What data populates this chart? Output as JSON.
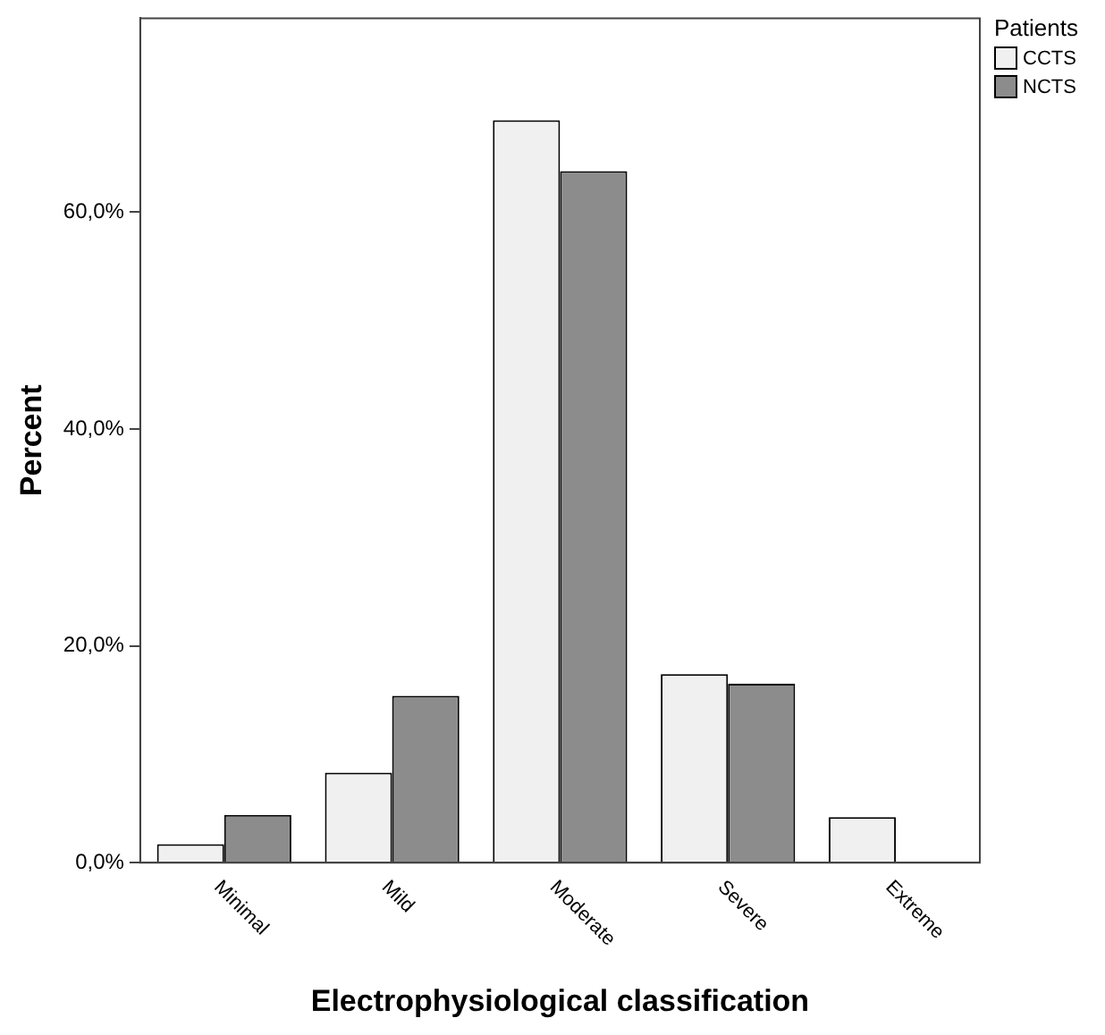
{
  "chart_data": {
    "type": "bar",
    "xlabel": "Electrophysiological classification",
    "ylabel": "Percent",
    "legend_title": "Patients",
    "categories": [
      "Minimal",
      "Mild",
      "Moderate",
      "Severe",
      "Extreme"
    ],
    "series": [
      {
        "name": "CCTS",
        "color": "#f0f0f0",
        "values": [
          1.7,
          8.3,
          68.5,
          17.4,
          4.2
        ]
      },
      {
        "name": "NCTS",
        "color": "#8c8c8c",
        "values": [
          4.4,
          15.4,
          63.8,
          16.5,
          0
        ]
      }
    ],
    "ylim": [
      0,
      77.9
    ],
    "yticks": [
      {
        "value": 0,
        "label": "0,0%"
      },
      {
        "value": 20,
        "label": "20,0%"
      },
      {
        "value": 40,
        "label": "40,0%"
      },
      {
        "value": 60,
        "label": "60,0%"
      }
    ],
    "grid": false,
    "legend": "top right"
  }
}
